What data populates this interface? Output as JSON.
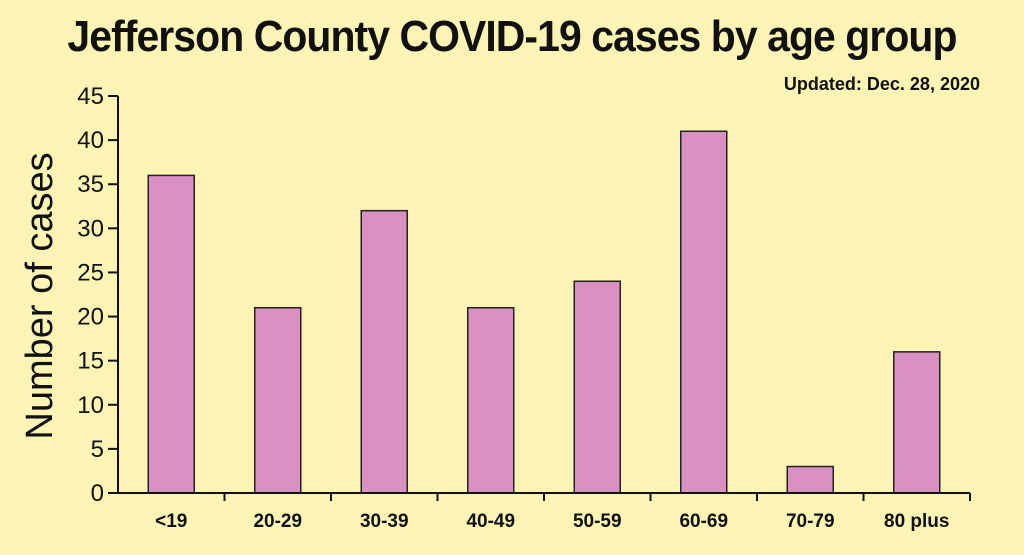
{
  "chart_data": {
    "type": "bar",
    "title": "Jefferson County COVID-19 cases by age group",
    "subtitle": "Updated: Dec. 28, 2020",
    "xlabel": "",
    "ylabel": "Number of cases",
    "categories": [
      "<19",
      "20-29",
      "30-39",
      "40-49",
      "50-59",
      "60-69",
      "70-79",
      "80 plus"
    ],
    "values": [
      36,
      21,
      32,
      21,
      24,
      41,
      3,
      16
    ],
    "ylim": [
      0,
      45
    ],
    "yticks": [
      0,
      5,
      10,
      15,
      20,
      25,
      30,
      35,
      40,
      45
    ],
    "grid": false,
    "bar_color": "#d990c2",
    "bar_stroke": "#222222",
    "background": "#fbf4b5"
  }
}
